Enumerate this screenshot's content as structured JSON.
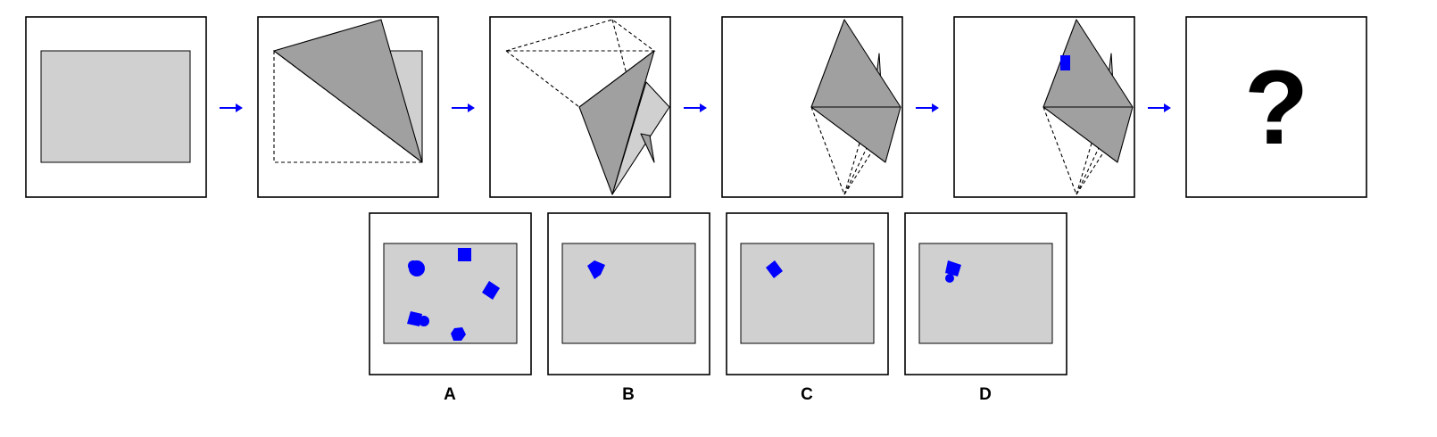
{
  "sequence": {
    "question_mark": "?"
  },
  "options": [
    {
      "label": "A"
    },
    {
      "label": "B"
    },
    {
      "label": "C"
    },
    {
      "label": "D"
    }
  ],
  "colors": {
    "paper": "#d0d0d0",
    "fold_flap": "#a0a0a0",
    "hole": "#0000ff",
    "arrow": "#0000ff",
    "frame": "#000000"
  }
}
